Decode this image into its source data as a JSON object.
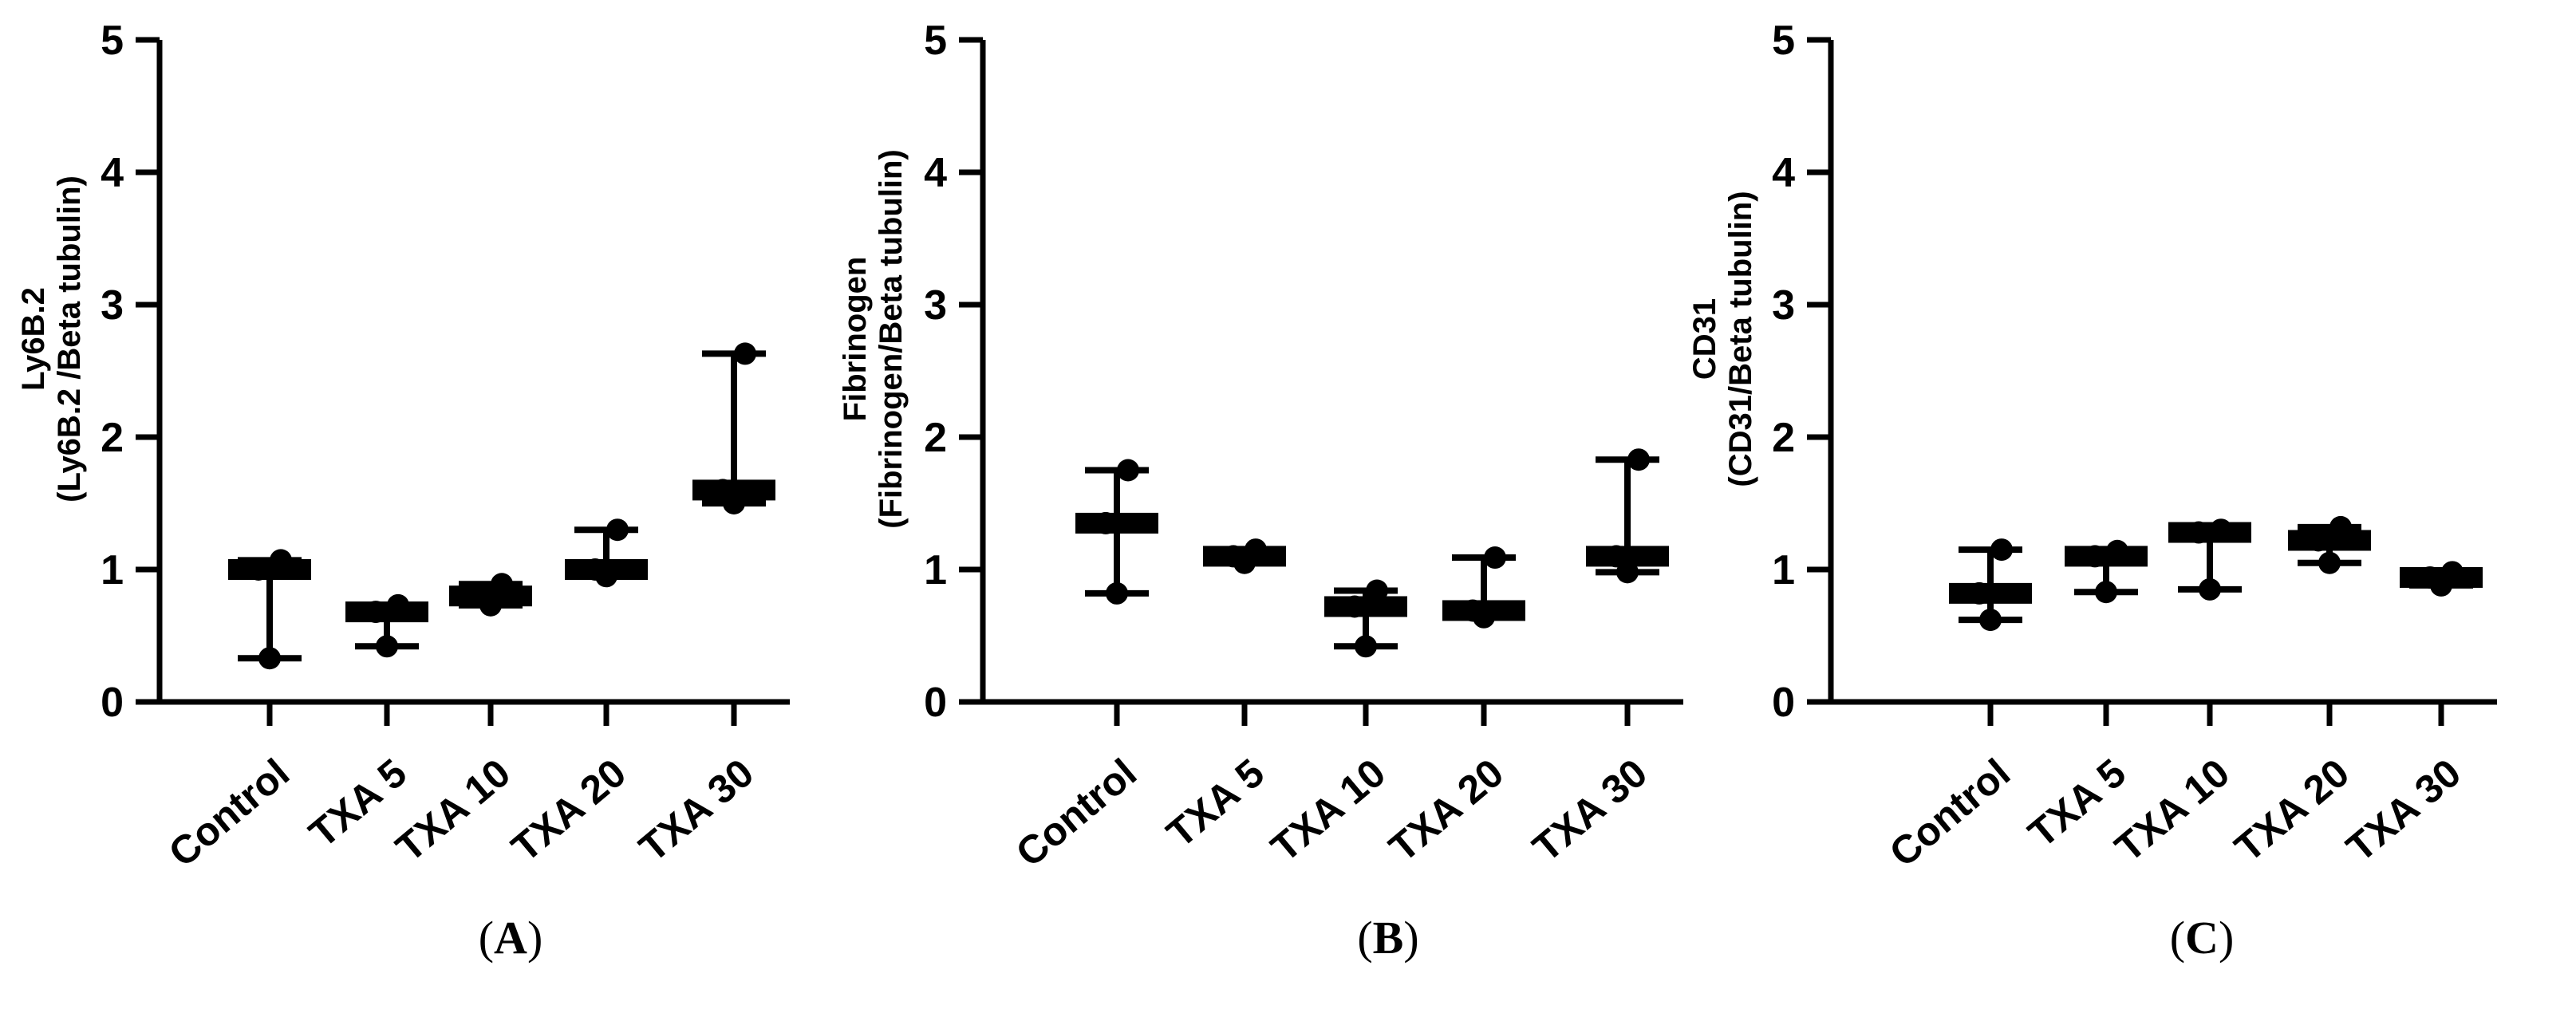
{
  "chart_data": [
    {
      "type": "box",
      "panel_label": "A",
      "ylabel": "Ly6B.2",
      "ylabel_sub": "(Ly6B.2 /Beta tubulin)",
      "ylim": [
        0,
        5
      ],
      "yticks": [
        0,
        1,
        2,
        3,
        4,
        5
      ],
      "categories": [
        "Control",
        "TXA 5",
        "TXA 10",
        "TXA 20",
        "TXA 30"
      ],
      "groups": [
        {
          "name": "Control",
          "min": 0.33,
          "median": 1.0,
          "max": 1.07,
          "points": [
            0.33,
            1.0,
            1.07
          ]
        },
        {
          "name": "TXA 5",
          "min": 0.42,
          "median": 0.68,
          "max": 0.73,
          "points": [
            0.42,
            0.68,
            0.73
          ]
        },
        {
          "name": "TXA 10",
          "min": 0.73,
          "median": 0.8,
          "max": 0.89,
          "points": [
            0.73,
            0.8,
            0.89
          ]
        },
        {
          "name": "TXA 20",
          "min": 0.95,
          "median": 1.0,
          "max": 1.3,
          "points": [
            0.95,
            1.0,
            1.3
          ]
        },
        {
          "name": "TXA 30",
          "min": 1.5,
          "median": 1.6,
          "max": 2.63,
          "points": [
            1.5,
            1.6,
            2.63
          ]
        }
      ]
    },
    {
      "type": "box",
      "panel_label": "B",
      "ylabel": "Fibrinogen",
      "ylabel_sub": "(Fibrinogen/Beta tubulin)",
      "ylim": [
        0,
        5
      ],
      "yticks": [
        0,
        1,
        2,
        3,
        4,
        5
      ],
      "categories": [
        "Control",
        "TXA 5",
        "TXA 10",
        "TXA 20",
        "TXA 30"
      ],
      "groups": [
        {
          "name": "Control",
          "min": 0.82,
          "median": 1.35,
          "max": 1.75,
          "points": [
            0.82,
            1.35,
            1.75
          ]
        },
        {
          "name": "TXA 5",
          "min": 1.05,
          "median": 1.1,
          "max": 1.15,
          "points": [
            1.05,
            1.1,
            1.15
          ]
        },
        {
          "name": "TXA 10",
          "min": 0.42,
          "median": 0.72,
          "max": 0.84,
          "points": [
            0.42,
            0.72,
            0.84
          ]
        },
        {
          "name": "TXA 20",
          "min": 0.64,
          "median": 0.69,
          "max": 1.09,
          "points": [
            0.64,
            0.69,
            1.09
          ]
        },
        {
          "name": "TXA 30",
          "min": 0.98,
          "median": 1.1,
          "max": 1.83,
          "points": [
            0.98,
            1.1,
            1.83
          ]
        }
      ]
    },
    {
      "type": "box",
      "panel_label": "C",
      "ylabel": "CD31",
      "ylabel_sub": "(CD31/Beta tubulin)",
      "ylim": [
        0,
        5
      ],
      "yticks": [
        0,
        1,
        2,
        3,
        4,
        5
      ],
      "categories": [
        "Control",
        "TXA 5",
        "TXA 10",
        "TXA 20",
        "TXA 30"
      ],
      "groups": [
        {
          "name": "Control",
          "min": 0.62,
          "median": 0.82,
          "max": 1.15,
          "points": [
            0.62,
            0.82,
            1.15
          ]
        },
        {
          "name": "TXA 5",
          "min": 0.83,
          "median": 1.1,
          "max": 1.14,
          "points": [
            0.83,
            1.1,
            1.14
          ]
        },
        {
          "name": "TXA 10",
          "min": 0.85,
          "median": 1.28,
          "max": 1.3,
          "points": [
            0.85,
            1.28,
            1.3
          ]
        },
        {
          "name": "TXA 20",
          "min": 1.05,
          "median": 1.22,
          "max": 1.32,
          "points": [
            1.05,
            1.22,
            1.32
          ]
        },
        {
          "name": "TXA 30",
          "min": 0.88,
          "median": 0.94,
          "max": 0.98,
          "points": [
            0.88,
            0.94,
            0.98
          ]
        }
      ]
    }
  ]
}
